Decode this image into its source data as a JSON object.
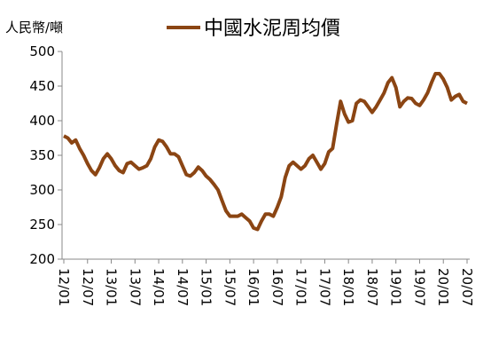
{
  "chart_data": {
    "type": "line",
    "y_label": "人民幣/噸",
    "categories": [
      "12/01",
      null,
      null,
      null,
      null,
      null,
      "12/07",
      null,
      null,
      null,
      null,
      null,
      "13/01",
      null,
      null,
      null,
      null,
      null,
      "13/07",
      null,
      null,
      null,
      null,
      null,
      "14/01",
      null,
      null,
      null,
      null,
      null,
      "14/07",
      null,
      null,
      null,
      null,
      null,
      "15/01",
      null,
      null,
      null,
      null,
      null,
      "15/07",
      null,
      null,
      null,
      null,
      null,
      "16/01",
      null,
      null,
      null,
      null,
      null,
      "16/07",
      null,
      null,
      null,
      null,
      null,
      "17/01",
      null,
      null,
      null,
      null,
      null,
      "17/07",
      null,
      null,
      null,
      null,
      null,
      "18/01",
      null,
      null,
      null,
      null,
      null,
      "18/07",
      null,
      null,
      null,
      null,
      null,
      "19/01",
      null,
      null,
      null,
      null,
      null,
      "19/07",
      null,
      null,
      null,
      null,
      null,
      "20/01",
      null,
      null,
      null,
      null,
      null,
      "20/07"
    ],
    "series": [
      {
        "name": "中國水泥周均價",
        "color": "#8b4513",
        "values": [
          378,
          375,
          368,
          372,
          360,
          350,
          338,
          328,
          322,
          332,
          345,
          352,
          345,
          335,
          328,
          325,
          338,
          340,
          335,
          330,
          332,
          335,
          345,
          362,
          372,
          370,
          362,
          352,
          352,
          348,
          335,
          322,
          320,
          325,
          333,
          328,
          320,
          315,
          308,
          300,
          285,
          270,
          262,
          262,
          262,
          265,
          260,
          255,
          245,
          243,
          255,
          265,
          265,
          262,
          275,
          290,
          318,
          335,
          340,
          335,
          330,
          335,
          345,
          350,
          340,
          330,
          338,
          355,
          360,
          395,
          428,
          410,
          398,
          400,
          425,
          430,
          428,
          420,
          412,
          420,
          430,
          440,
          455,
          462,
          448,
          420,
          428,
          433,
          432,
          425,
          422,
          430,
          440,
          455,
          468,
          468,
          460,
          448,
          430,
          435,
          438,
          428,
          425
        ]
      }
    ],
    "ylim": [
      200,
      500
    ],
    "yticks": [
      200,
      250,
      300,
      350,
      400,
      450,
      500
    ],
    "grid": false
  }
}
